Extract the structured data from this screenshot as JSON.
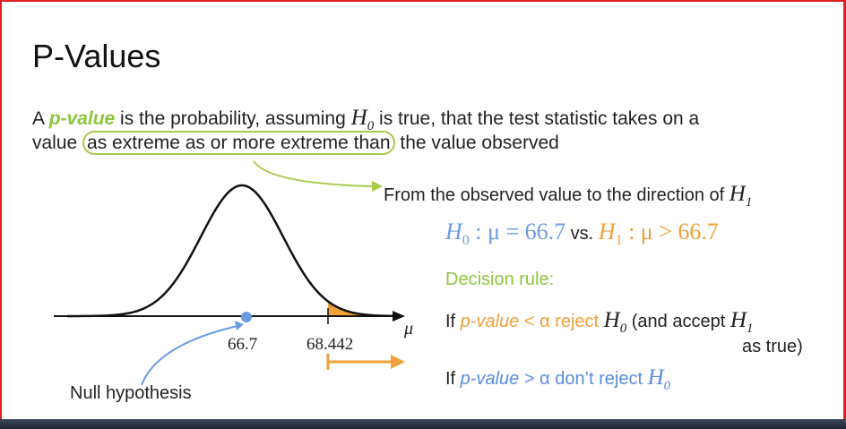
{
  "slide": {
    "title": "P-Values",
    "definition": {
      "prefix": "A ",
      "term": "p-value",
      "middle1": "  is the probability, assuming ",
      "h0": "H",
      "h0_sub": "0",
      "middle2": " is true, that the test statistic takes on a",
      "line2_start": "value ",
      "circled": "as extreme as or more extreme than",
      "line2_end": " the value observed"
    },
    "direction_note": {
      "text": "From the observed value to the direction of ",
      "h1": "H",
      "h1_sub": "1"
    },
    "hypotheses": {
      "null_text": "H",
      "null_sub": "0",
      "null_expr": " : μ = 66.7",
      "vs": " vs. ",
      "alt_text": "H",
      "alt_sub": "1",
      "alt_expr": " : μ > 66.7"
    },
    "decision": {
      "label": "Decision rule:",
      "rule1_if": "If ",
      "rule1_pvalue": "p-value",
      "rule1_cond": "  < α reject ",
      "rule1_h": "H",
      "rule1_h_sub": "0",
      "rule1_tail": " (and accept ",
      "rule1_h1": "H",
      "rule1_h1_sub": "1",
      "rule1_line2": "as true)",
      "rule2_if": "If ",
      "rule2_pvalue": "p-value",
      "rule2_cond": "  > α don’t reject ",
      "rule2_h": "H",
      "rule2_h_sub": "0"
    },
    "chart_labels": {
      "tick_null": "66.7",
      "tick_obs": "68.442",
      "axis_var": "μ",
      "null_note": "Null hypothesis"
    },
    "colors": {
      "accent_green": "#8cc63f",
      "null_blue": "#6b9be0",
      "alt_orange": "#f0a03a",
      "frame_red": "#e02020"
    }
  },
  "chart_data": {
    "type": "area",
    "distribution": "normal",
    "mean": 66.7,
    "observed": 68.442,
    "shaded_tail": "right",
    "xlabel": "μ",
    "x_ticks": [
      66.7,
      68.442
    ]
  }
}
